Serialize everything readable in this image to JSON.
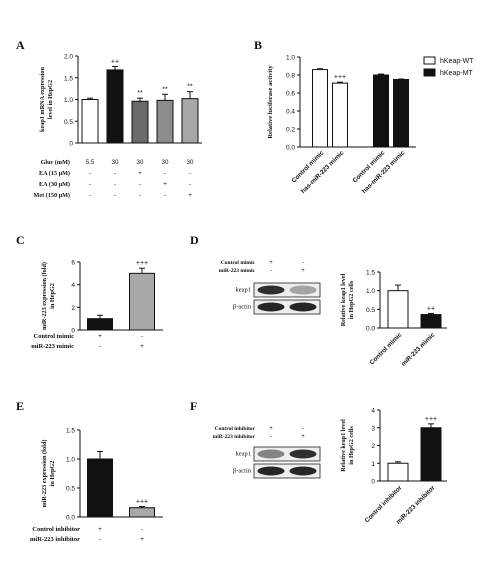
{
  "panel_labels": {
    "A": "A",
    "B": "B",
    "C": "C",
    "D": "D",
    "E": "E",
    "F": "F"
  },
  "colors": {
    "white": "#ffffff",
    "black": "#111111",
    "dark_gray": "#6a6a6a",
    "gray": "#8c8c8c",
    "light_gray": "#a8a8a8",
    "blot_band": "#1a1a1a"
  },
  "chart_data": [
    {
      "panel": "A",
      "type": "bar",
      "ylabel_line1": "keap1 mRNA expression",
      "ylabel_line2": "level in HepG2",
      "ylim": [
        0,
        2.0
      ],
      "yticks": [
        "0",
        "0.5",
        "1.0",
        "1.5",
        "2.0"
      ],
      "values": [
        1.0,
        1.68,
        0.96,
        0.98,
        1.02
      ],
      "errors": [
        0.03,
        0.08,
        0.07,
        0.14,
        0.16
      ],
      "annotations": [
        "",
        "++",
        "**",
        "**",
        "**"
      ],
      "treatment_rows": [
        {
          "label": "Gluc (mM)",
          "values": [
            "5.5",
            "30",
            "30",
            "30",
            "30"
          ]
        },
        {
          "label": "EA (15 μM)",
          "values": [
            "-",
            "-",
            "+",
            "-",
            "-"
          ]
        },
        {
          "label": "EA (30 μM)",
          "values": [
            "-",
            "-",
            "-",
            "+",
            "-"
          ]
        },
        {
          "label": "Met (150 μM)",
          "values": [
            "-",
            "-",
            "-",
            "-",
            "+"
          ]
        }
      ]
    },
    {
      "panel": "B",
      "type": "bar",
      "ylabel": "Relative luciferase activity",
      "ylim": [
        0,
        1.0
      ],
      "yticks": [
        "0.0",
        "0.2",
        "0.4",
        "0.6",
        "0.8",
        "1.0"
      ],
      "categories": [
        "Control mimic",
        "has-miR-223 mimic",
        "Control mimic",
        "has-miR-223 mimic"
      ],
      "values": [
        0.86,
        0.71,
        0.8,
        0.75
      ],
      "errors": [
        0.01,
        0.01,
        0.01,
        0.005
      ],
      "annotations": [
        "",
        "+++",
        "",
        ""
      ],
      "legend": [
        {
          "name": "hKeap-WT"
        },
        {
          "name": "hKeap-MT"
        }
      ]
    },
    {
      "panel": "C",
      "type": "bar",
      "ylabel_line1": "miR-223 expression (fold)",
      "ylabel_line2": "in HepG2",
      "ylim": [
        0,
        6
      ],
      "yticks": [
        "0",
        "2",
        "4",
        "6"
      ],
      "values": [
        1.0,
        5.0
      ],
      "errors": [
        0.3,
        0.45
      ],
      "annotations": [
        "",
        "+++"
      ],
      "treatment_rows": [
        {
          "label": "Control mimic",
          "values": [
            "+",
            "-"
          ]
        },
        {
          "label": "miR-223 mimic",
          "values": [
            "-",
            "+"
          ]
        }
      ]
    },
    {
      "panel": "D",
      "type": "bar",
      "ylabel_line1": "Relative keap1 level",
      "ylabel_line2": "in HepG2 cells",
      "ylim": [
        0,
        1.5
      ],
      "yticks": [
        "0.0",
        "0.5",
        "1.0",
        "1.5"
      ],
      "categories": [
        "Control mimic",
        "miR-223 mimic"
      ],
      "values": [
        1.0,
        0.36
      ],
      "errors": [
        0.15,
        0.03
      ],
      "annotations": [
        "",
        "++"
      ],
      "blot": {
        "header_rows": [
          {
            "label": "Control mimic",
            "values": [
              "+",
              "-"
            ]
          },
          {
            "label": "miR-223 mimic",
            "values": [
              "-",
              "+"
            ]
          }
        ],
        "bands": [
          {
            "label": "keap1",
            "intensity": [
              0.9,
              0.35
            ]
          },
          {
            "label": "β-actin",
            "intensity": [
              0.95,
              0.95
            ]
          }
        ]
      }
    },
    {
      "panel": "E",
      "type": "bar",
      "ylabel_line1": "miR-223 expression (fold)",
      "ylabel_line2": "in HepG2",
      "ylim": [
        0,
        1.5
      ],
      "yticks": [
        "0.0",
        "0.5",
        "1.0",
        "1.5"
      ],
      "values": [
        1.0,
        0.16
      ],
      "errors": [
        0.13,
        0.02
      ],
      "annotations": [
        "",
        "+++"
      ],
      "treatment_rows": [
        {
          "label": "Control inhibitor",
          "values": [
            "+",
            "-"
          ]
        },
        {
          "label": "miR-223 inhibitor",
          "values": [
            "-",
            "+"
          ]
        }
      ]
    },
    {
      "panel": "F",
      "type": "bar",
      "ylabel_line1": "Relative keap1 level",
      "ylabel_line2": "in HepG2 cells",
      "ylim": [
        0,
        4
      ],
      "yticks": [
        "0",
        "1",
        "2",
        "3",
        "4"
      ],
      "categories": [
        "Control inhibitor",
        "miR-223 inhibitor"
      ],
      "values": [
        1.0,
        3.0
      ],
      "errors": [
        0.08,
        0.22
      ],
      "annotations": [
        "",
        "+++"
      ],
      "blot": {
        "header_rows": [
          {
            "label": "Control inhibitor",
            "values": [
              "+",
              "-"
            ]
          },
          {
            "label": "miR-223 inhibitor",
            "values": [
              "-",
              "+"
            ]
          }
        ],
        "bands": [
          {
            "label": "keap1",
            "intensity": [
              0.5,
              0.9
            ]
          },
          {
            "label": "β-actin",
            "intensity": [
              0.95,
              0.95
            ]
          }
        ]
      }
    }
  ]
}
